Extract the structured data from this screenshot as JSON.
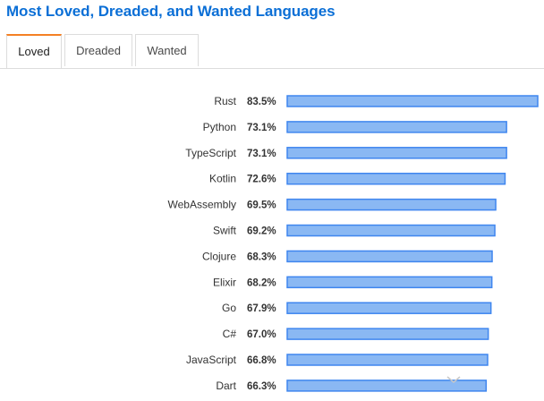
{
  "page": {
    "title": "Most Loved, Dreaded, and Wanted Languages"
  },
  "tabs": [
    {
      "label": "Loved",
      "active": true
    },
    {
      "label": "Dreaded",
      "active": false
    },
    {
      "label": "Wanted",
      "active": false
    }
  ],
  "colors": {
    "title": "#0b6fd6",
    "active_tab_accent": "#f48024",
    "bar_fill": "#8ab8f3",
    "bar_stroke": "#3f86ef"
  },
  "chart_data": {
    "type": "bar",
    "orientation": "horizontal",
    "categories": [
      "Rust",
      "Python",
      "TypeScript",
      "Kotlin",
      "WebAssembly",
      "Swift",
      "Clojure",
      "Elixir",
      "Go",
      "C#",
      "JavaScript",
      "Dart"
    ],
    "values": [
      83.5,
      73.1,
      73.1,
      72.6,
      69.5,
      69.2,
      68.3,
      68.2,
      67.9,
      67.0,
      66.8,
      66.3
    ],
    "value_labels": [
      "83.5%",
      "73.1%",
      "73.1%",
      "72.6%",
      "69.5%",
      "69.2%",
      "68.3%",
      "68.2%",
      "67.9%",
      "67.0%",
      "66.8%",
      "66.3%"
    ],
    "title": "",
    "xlabel": "",
    "ylabel": "",
    "xlim": [
      0,
      83.5
    ],
    "grid": false
  },
  "icons": {
    "scroll_hint": "chevron-down-icon"
  }
}
